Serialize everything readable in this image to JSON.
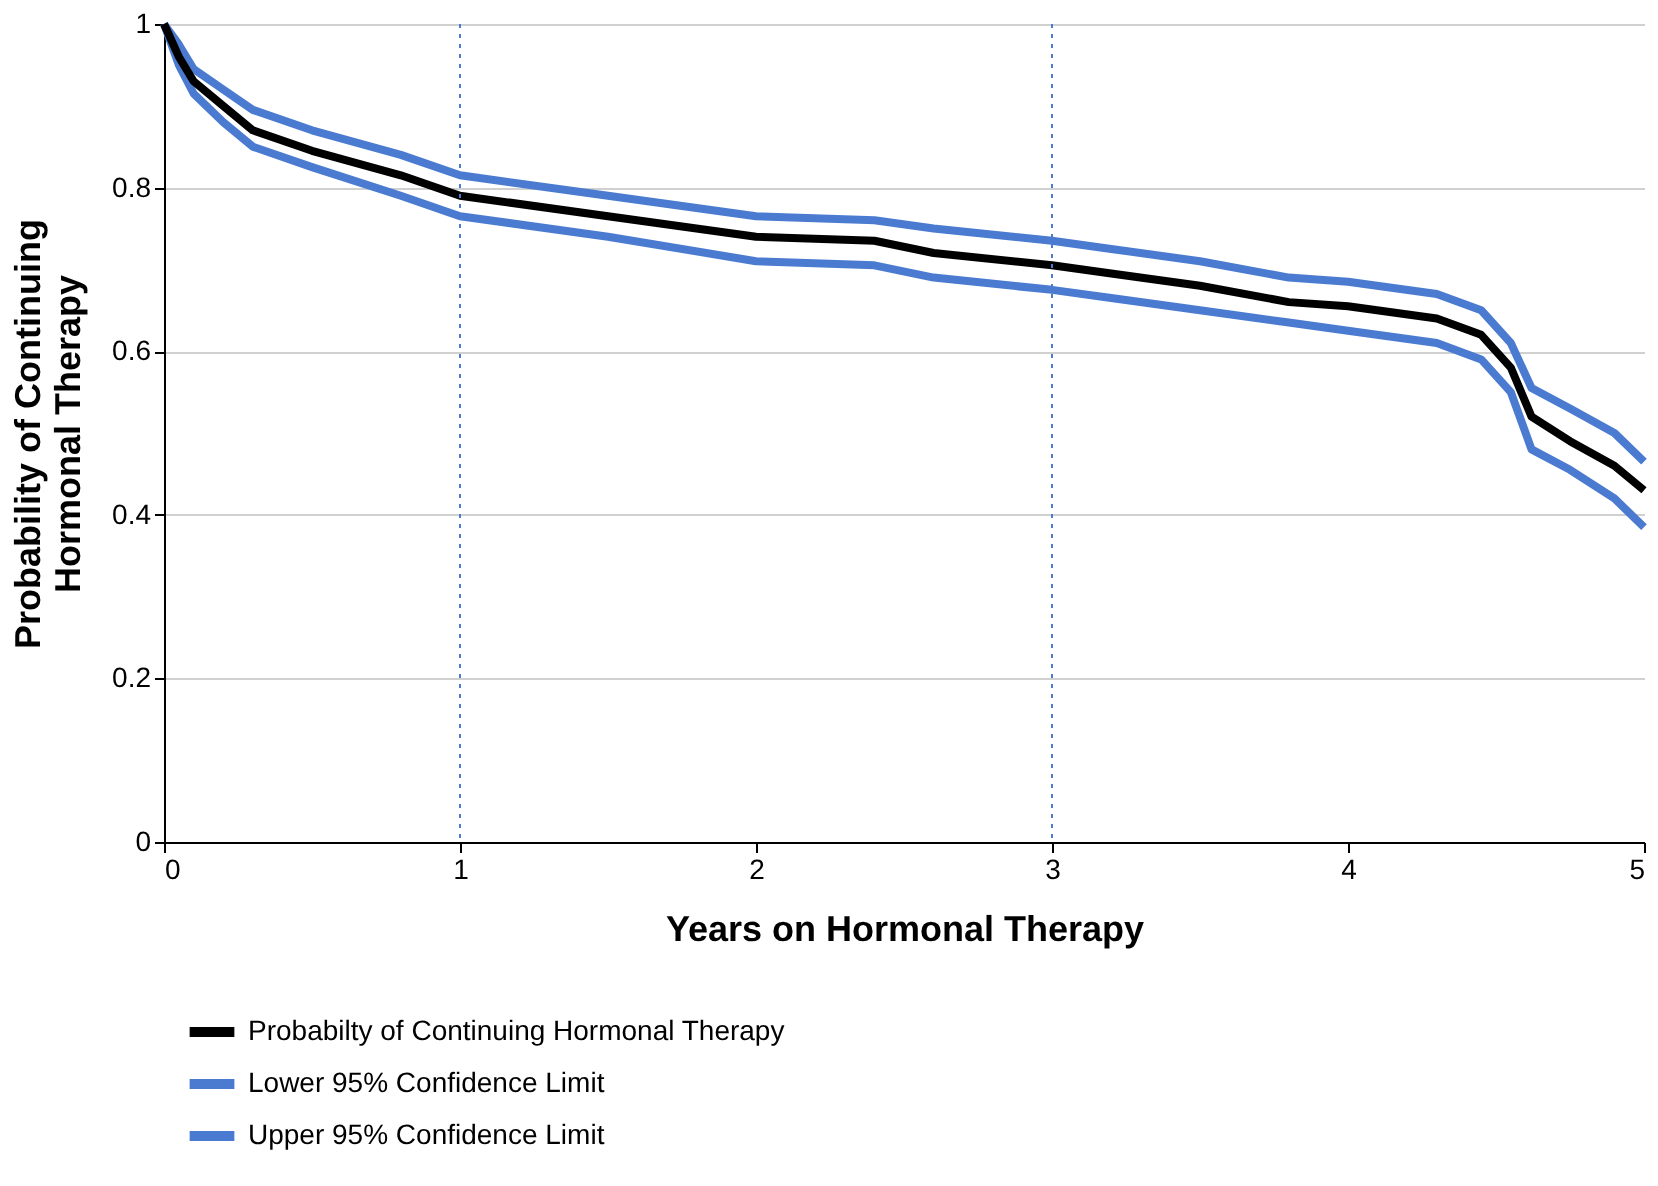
{
  "chart_data": {
    "type": "line",
    "xlabel": "Years on Hormonal Therapy",
    "ylabel": "Probability of Continuing Hormonal Therapy",
    "xlim": [
      0,
      5
    ],
    "ylim": [
      0,
      1
    ],
    "xticks": [
      0,
      1,
      2,
      3,
      4,
      5
    ],
    "yticks": [
      0,
      0.2,
      0.4,
      0.6,
      0.8,
      1
    ],
    "grid": "y",
    "legend": "bottom",
    "marker": "none",
    "line_style": "solid",
    "ref_lines": [
      {
        "axis": "x",
        "value": 1,
        "label": null,
        "color": "#4a7bd1",
        "line_style": "dotted"
      },
      {
        "axis": "x",
        "value": 3,
        "label": null,
        "color": "#4a7bd1",
        "line_style": "dotted"
      }
    ],
    "x": [
      0,
      0.05,
      0.1,
      0.2,
      0.3,
      0.5,
      0.8,
      1,
      1.5,
      2,
      2.4,
      2.6,
      3,
      3.2,
      3.5,
      3.8,
      4,
      4.3,
      4.45,
      4.55,
      4.62,
      4.75,
      4.9,
      5
    ],
    "series": [
      {
        "name": "Probabilty of Continuing Hormonal Therapy",
        "color": "#000000",
        "values": [
          1,
          0.96,
          0.93,
          0.9,
          0.87,
          0.845,
          0.815,
          0.79,
          0.765,
          0.74,
          0.735,
          0.72,
          0.705,
          0.695,
          0.68,
          0.66,
          0.655,
          0.64,
          0.62,
          0.58,
          0.52,
          0.49,
          0.46,
          0.43
        ]
      },
      {
        "name": "Lower 95% Confidence Limit",
        "color": "#4a7bd1",
        "values": [
          1,
          0.95,
          0.915,
          0.88,
          0.85,
          0.825,
          0.79,
          0.765,
          0.74,
          0.71,
          0.705,
          0.69,
          0.675,
          0.665,
          0.65,
          0.635,
          0.625,
          0.61,
          0.59,
          0.55,
          0.48,
          0.455,
          0.42,
          0.385
        ]
      },
      {
        "name": "Upper 95% Confidence Limit",
        "color": "#4a7bd1",
        "values": [
          1,
          0.975,
          0.945,
          0.92,
          0.895,
          0.87,
          0.84,
          0.815,
          0.79,
          0.765,
          0.76,
          0.75,
          0.735,
          0.725,
          0.71,
          0.69,
          0.685,
          0.67,
          0.65,
          0.61,
          0.555,
          0.53,
          0.5,
          0.465
        ]
      }
    ]
  }
}
